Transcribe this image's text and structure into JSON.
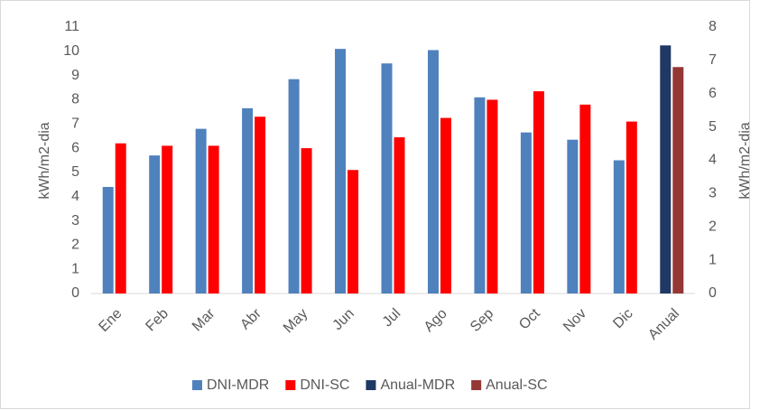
{
  "chart_data": {
    "type": "bar",
    "categories": [
      "Ene",
      "Feb",
      "Mar",
      "Abr",
      "May",
      "Jun",
      "Jul",
      "Ago",
      "Sep",
      "Oct",
      "Nov",
      "Dic",
      "Anual"
    ],
    "series": [
      {
        "name": "DNI-MDR",
        "color": "#4f81bd",
        "values": [
          4.4,
          5.7,
          6.8,
          7.65,
          8.85,
          10.1,
          9.5,
          10.05,
          8.1,
          6.65,
          6.35,
          5.5,
          null
        ]
      },
      {
        "name": "DNI-SC",
        "color": "#ff0000",
        "values": [
          6.2,
          6.1,
          6.1,
          7.3,
          6.0,
          5.1,
          6.45,
          7.25,
          8.0,
          8.35,
          7.8,
          7.1,
          null
        ]
      },
      {
        "name": "Anual-MDR",
        "color": "#1f3864",
        "axis": "y2",
        "values": [
          null,
          null,
          null,
          null,
          null,
          null,
          null,
          null,
          null,
          null,
          null,
          null,
          7.45
        ]
      },
      {
        "name": "Anual-SC",
        "color": "#953735",
        "axis": "y2",
        "values": [
          null,
          null,
          null,
          null,
          null,
          null,
          null,
          null,
          null,
          null,
          null,
          null,
          6.8
        ]
      }
    ],
    "ylabel": "kWh/m2-dia",
    "y2label": "kWh/m2-dia",
    "ylim": [
      0,
      11
    ],
    "yticks": [
      0,
      1,
      2,
      3,
      4,
      5,
      6,
      7,
      8,
      9,
      10,
      11
    ],
    "y2lim": [
      0,
      8
    ],
    "y2ticks": [
      0,
      1,
      2,
      3,
      4,
      5,
      6,
      7,
      8
    ],
    "legend": "bottom"
  }
}
